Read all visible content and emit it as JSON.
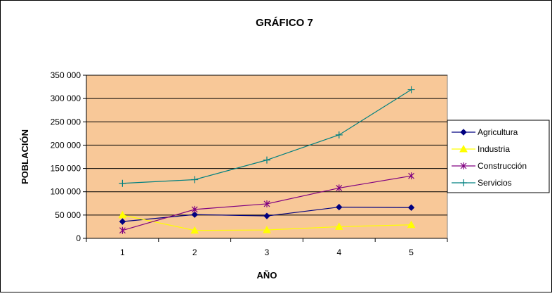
{
  "chart_data": {
    "type": "line",
    "title": "GRÁFICO 7",
    "xlabel": "AÑO",
    "ylabel": "POBLACIÓN",
    "x": [
      1,
      2,
      3,
      4,
      5
    ],
    "x_tick_labels": [
      "1",
      "2",
      "3",
      "4",
      "5"
    ],
    "ylim": [
      0,
      350000
    ],
    "y_tick_values": [
      0,
      50000,
      100000,
      150000,
      200000,
      250000,
      300000,
      350000
    ],
    "y_tick_labels": [
      "0",
      "50 000",
      "100 000",
      "150 000",
      "200 000",
      "250 000",
      "300 000",
      "350 000"
    ],
    "grid": "horizontal",
    "legend_position": "right",
    "plot_background": "#f8c898",
    "series": [
      {
        "name": "Agricultura",
        "color": "#000080",
        "marker": "diamond",
        "values": [
          36000,
          51000,
          48000,
          67000,
          66000
        ]
      },
      {
        "name": "Industria",
        "color": "#ffff00",
        "marker": "triangle",
        "values": [
          50000,
          17000,
          18000,
          25000,
          29000
        ]
      },
      {
        "name": "Construcción",
        "color": "#800080",
        "marker": "star",
        "values": [
          17000,
          62000,
          74000,
          108000,
          134000
        ]
      },
      {
        "name": "Servicios",
        "color": "#008080",
        "marker": "plus",
        "values": [
          118000,
          126000,
          168000,
          222000,
          319000
        ]
      }
    ]
  }
}
